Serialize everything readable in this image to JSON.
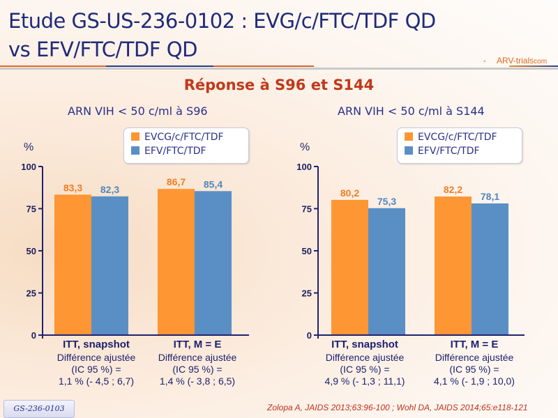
{
  "header": {
    "title_line1": "Etude GS-US-236-0102 : EVG/c/FTC/TDF QD",
    "title_line2": "vs EFV/FTC/TDF QD",
    "logo_text": "ARV-trials",
    "logo_suffix": "com"
  },
  "subtitle": "Réponse à S96 et S144",
  "colors": {
    "series1": "#fd9633",
    "series2": "#5a8fc6",
    "axis": "#1f2270",
    "title": "#1f2a7a",
    "subtitle": "#c2381a"
  },
  "chart_data": [
    {
      "type": "bar",
      "title": "ARN VIH < 50 c/ml à S96",
      "ylabel": "%",
      "xlabel": "",
      "ylim": [
        0,
        100
      ],
      "yticks": [
        "0",
        "25",
        "50",
        "75",
        "100"
      ],
      "ytick_values": [
        0,
        25,
        50,
        75,
        100
      ],
      "grid": false,
      "legend": "top-right",
      "categories": [
        "ITT, snapshot",
        "ITT, M = E"
      ],
      "category_notes": [
        [
          "Différence ajustée",
          "(IC 95 %) =",
          "1,1 % (- 4,5 ; 6,7)"
        ],
        [
          "Différence ajustée",
          "(IC 95 %) =",
          "1,4 % (- 3,8 ; 6,5)"
        ]
      ],
      "series": [
        {
          "name": "EVCG/c/FTC/TDF",
          "values": [
            83.3,
            86.7
          ],
          "labels": [
            "83,3",
            "86,7"
          ]
        },
        {
          "name": "EFV/FTC/TDF",
          "values": [
            82.3,
            85.4
          ],
          "labels": [
            "82,3",
            "85,4"
          ]
        }
      ]
    },
    {
      "type": "bar",
      "title": "ARN VIH < 50 c/ml à S144",
      "ylabel": "%",
      "xlabel": "",
      "ylim": [
        0,
        100
      ],
      "yticks": [
        "0",
        "25",
        "50",
        "75",
        "100"
      ],
      "ytick_values": [
        0,
        25,
        50,
        75,
        100
      ],
      "grid": false,
      "legend": "top-right",
      "categories": [
        "ITT, snapshot",
        "ITT, M = E"
      ],
      "category_notes": [
        [
          "Différence ajustée",
          "(IC 95 %) =",
          "4,9 % (- 1,3 ; 11,1)"
        ],
        [
          "Différence ajustée",
          "(IC 95 %) =",
          "4,1 % (- 1,9 ; 10,0)"
        ]
      ],
      "series": [
        {
          "name": "EVCG/c/FTC/TDF",
          "values": [
            80.2,
            82.2
          ],
          "labels": [
            "80,2",
            "82,2"
          ]
        },
        {
          "name": "EFV/FTC/TDF",
          "values": [
            75.3,
            78.1
          ],
          "labels": [
            "75,3",
            "78,1"
          ]
        }
      ]
    }
  ],
  "footer": {
    "study_badge": "GS-236-0103",
    "reference": "Zolopa A, JAIDS 2013;63:96-100 ; Wohl DA, JAIDS 2014;65:e118-121"
  }
}
